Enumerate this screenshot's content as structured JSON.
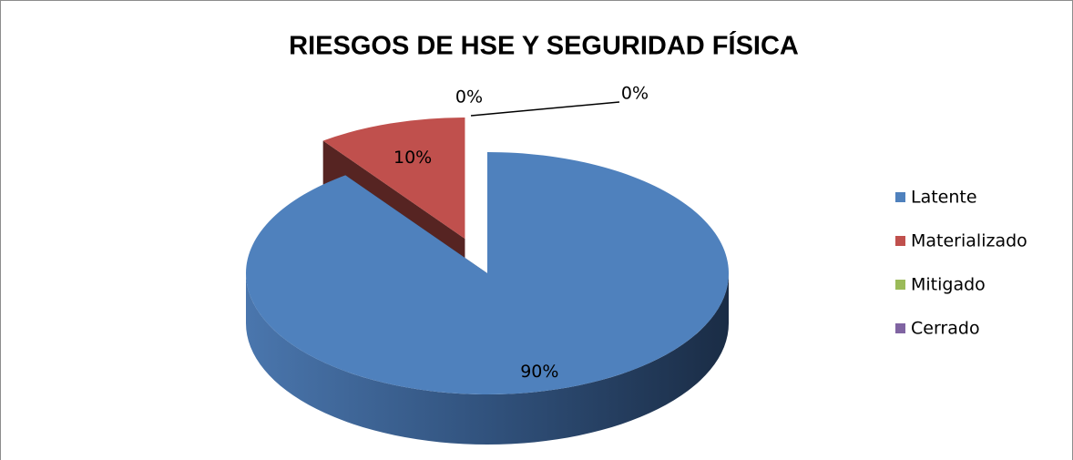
{
  "chart_data": {
    "type": "pie3d",
    "title": "RIESGOS DE HSE Y SEGURIDAD FÍSICA",
    "categories": [
      "Latente",
      "Materializado",
      "Mitigado",
      "Cerrado"
    ],
    "values": [
      90,
      10,
      0,
      0
    ],
    "value_labels": [
      "90%",
      "10%",
      "0%",
      "0%"
    ],
    "colors": [
      "#4f81bd",
      "#c0504d",
      "#9bbb59",
      "#8064a2"
    ],
    "exploded": [
      false,
      true,
      false,
      false
    ],
    "legend": "right"
  }
}
